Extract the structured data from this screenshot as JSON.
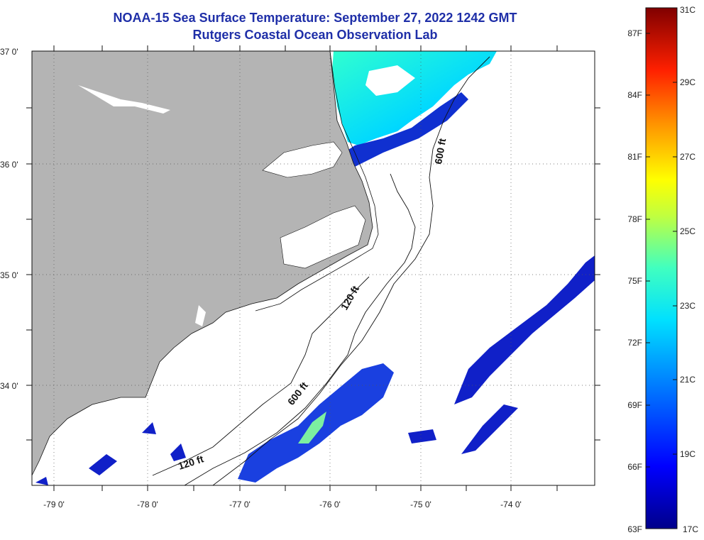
{
  "header": {
    "title": "NOAA-15 Sea Surface Temperature:  September 27, 2022 1242 GMT",
    "subtitle": "Rutgers Coastal Ocean Observation Lab"
  },
  "map": {
    "lat_labels": [
      "37 0'",
      "36 0'",
      "35 0'",
      "34 0'"
    ],
    "lon_labels": [
      "-79 0'",
      "-78 0'",
      "-77 0'",
      "-76 0'",
      "-75 0'",
      "-74 0'"
    ],
    "lat_range": [
      33.1,
      37.0
    ],
    "lon_range": [
      -79.3,
      -73.0
    ],
    "contour_labels": [
      "600 ft",
      "120 ft",
      "600 ft",
      "120 ft"
    ],
    "colors": {
      "land": "#b4b4b4",
      "ocean": "#ffffff"
    }
  },
  "legend": {
    "fahrenheit_labels": [
      "87F",
      "84F",
      "81F",
      "78F",
      "75F",
      "72F",
      "69F",
      "66F",
      "63F"
    ],
    "celsius_labels": [
      "31C",
      "29C",
      "27C",
      "25C",
      "23C",
      "21C",
      "19C",
      "17C"
    ],
    "range_c": [
      17,
      31
    ]
  }
}
